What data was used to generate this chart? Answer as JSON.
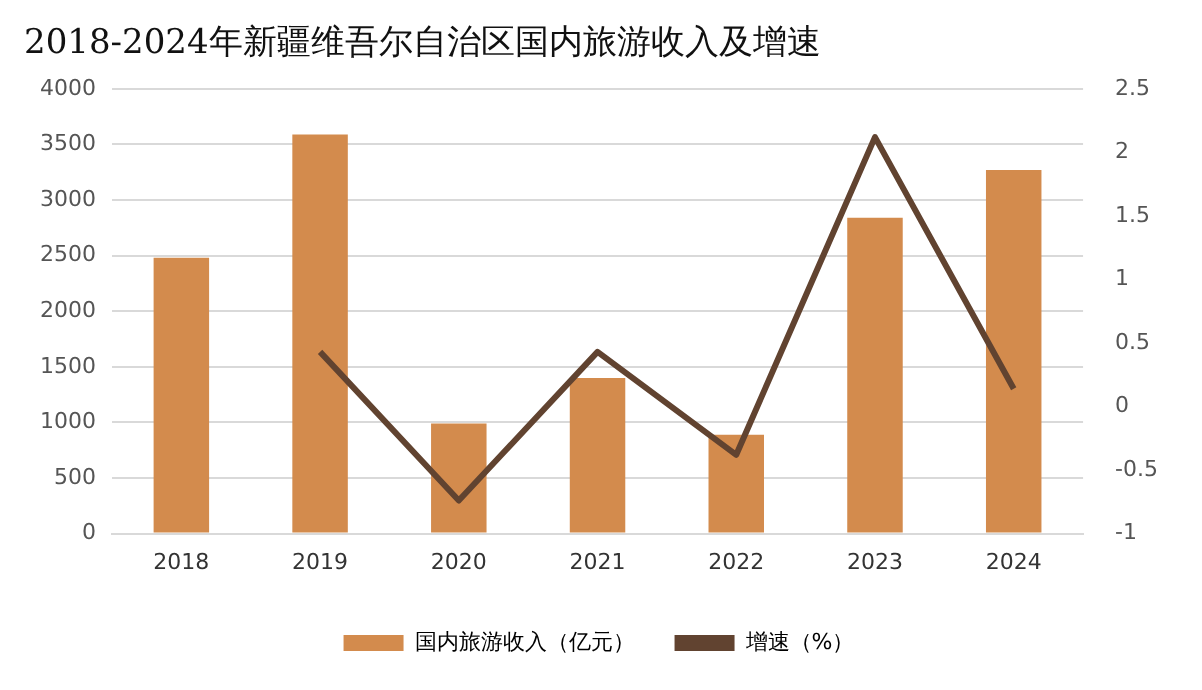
{
  "chart_data": {
    "type": "bar",
    "title": "2018-2024年新疆维吾尔自治区国内旅游收入及增速",
    "categories": [
      "2018",
      "2019",
      "2020",
      "2021",
      "2022",
      "2023",
      "2024"
    ],
    "series": [
      {
        "name": "国内旅游收入（亿元）",
        "color": "#d38b4d",
        "values": [
          2480,
          3590,
          990,
          1400,
          890,
          2840,
          3270
        ]
      },
      {
        "name": "增速（%）",
        "type": "line",
        "axis": "y2",
        "color": "#614330",
        "values": [
          null,
          0.43,
          -0.74,
          0.43,
          -0.38,
          2.12,
          0.14
        ]
      }
    ],
    "ylim": [
      0,
      4000
    ],
    "yticks": [
      0,
      500,
      1000,
      1500,
      2000,
      2500,
      3000,
      3500,
      4000
    ],
    "y2lim": [
      -1,
      2.5
    ],
    "y2ticks": [
      -1,
      -0.5,
      0,
      0.5,
      1,
      1.5,
      2,
      2.5
    ],
    "grid": "y",
    "legend": "bottom",
    "marker": "none"
  }
}
